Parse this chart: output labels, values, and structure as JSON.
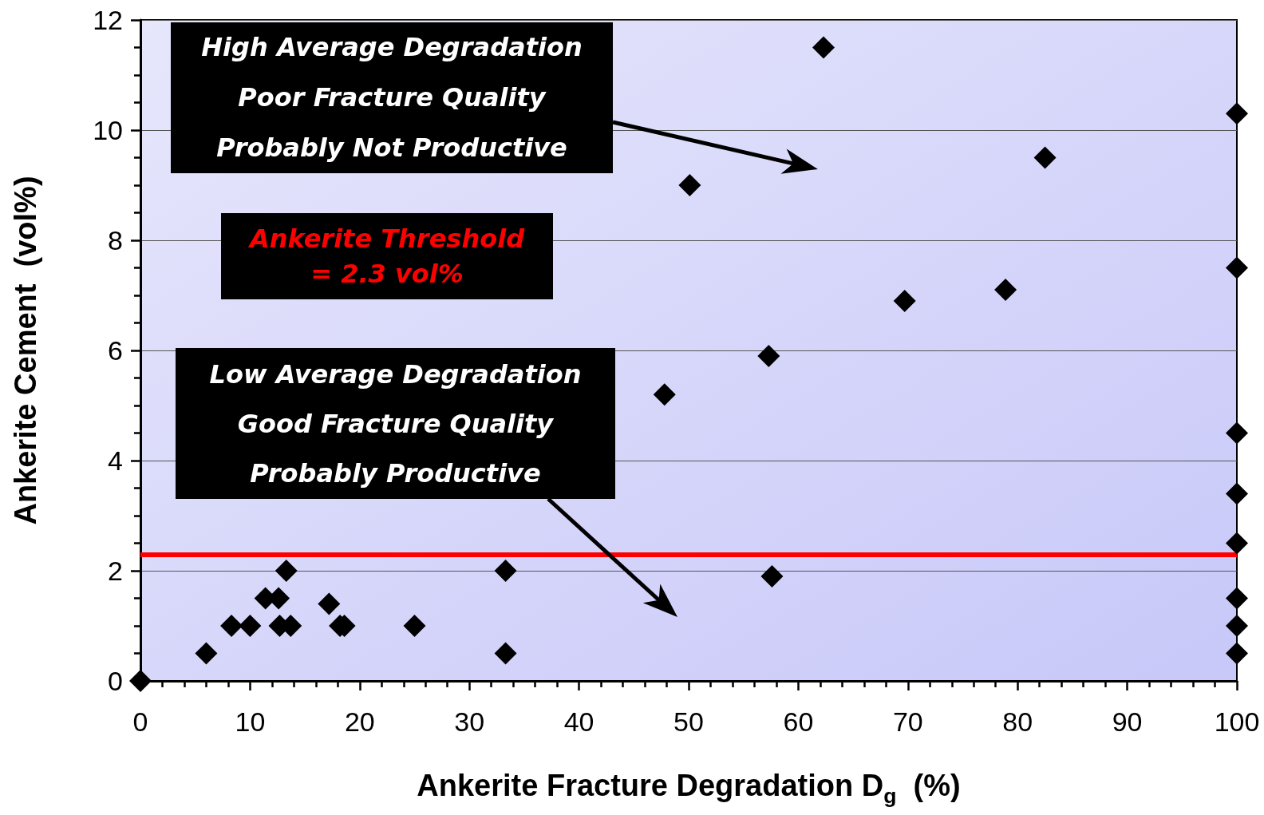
{
  "chart_data": {
    "type": "scatter",
    "xlabel": "Ankerite Fracture Degradation D$_{g}$  (%)",
    "ylabel": "Ankerite Cement  (vol%)",
    "x": [
      0,
      6.0,
      8.3,
      10.0,
      11.4,
      12.6,
      12.7,
      13.3,
      13.7,
      17.2,
      18.2,
      18.6,
      25.0,
      33.3,
      33.3,
      47.8,
      50.1,
      57.3,
      57.6,
      62.3,
      69.7,
      78.9,
      82.5,
      100,
      100,
      100,
      100,
      100,
      100,
      100,
      100
    ],
    "values": [
      0,
      0.5,
      1.0,
      1.0,
      1.5,
      1.5,
      1.0,
      2.0,
      1.0,
      1.4,
      1.0,
      1.0,
      1.0,
      2.0,
      0.5,
      5.2,
      9.0,
      5.9,
      1.9,
      11.5,
      6.9,
      7.1,
      9.5,
      10.3,
      7.5,
      4.5,
      3.4,
      2.5,
      1.5,
      1.0,
      0.5
    ],
    "color": "#000000",
    "marker": "diamond",
    "xlim": [
      0,
      100
    ],
    "xticks": [
      0,
      {
        "value": 2,
        "label": null
      },
      {
        "value": 4,
        "label": null
      },
      {
        "value": 6,
        "label": null
      },
      {
        "value": 8,
        "label": null
      },
      10,
      {
        "value": 12,
        "label": null
      },
      {
        "value": 14,
        "label": null
      },
      {
        "value": 16,
        "label": null
      },
      {
        "value": 18,
        "label": null
      },
      20,
      {
        "value": 22,
        "label": null
      },
      {
        "value": 24,
        "label": null
      },
      {
        "value": 26,
        "label": null
      },
      {
        "value": 28,
        "label": null
      },
      30,
      {
        "value": 32,
        "label": null
      },
      {
        "value": 34,
        "label": null
      },
      {
        "value": 36,
        "label": null
      },
      {
        "value": 38,
        "label": null
      },
      40,
      {
        "value": 42,
        "label": null
      },
      {
        "value": 44,
        "label": null
      },
      {
        "value": 46,
        "label": null
      },
      {
        "value": 48,
        "label": null
      },
      50,
      {
        "value": 52,
        "label": null
      },
      {
        "value": 54,
        "label": null
      },
      {
        "value": 56,
        "label": null
      },
      {
        "value": 58,
        "label": null
      },
      60,
      {
        "value": 62,
        "label": null
      },
      {
        "value": 64,
        "label": null
      },
      {
        "value": 66,
        "label": null
      },
      {
        "value": 68,
        "label": null
      },
      70,
      {
        "value": 72,
        "label": null
      },
      {
        "value": 74,
        "label": null
      },
      {
        "value": 76,
        "label": null
      },
      {
        "value": 78,
        "label": null
      },
      80,
      {
        "value": 82,
        "label": null
      },
      {
        "value": 84,
        "label": null
      },
      {
        "value": 86,
        "label": null
      },
      {
        "value": 88,
        "label": null
      },
      90,
      {
        "value": 92,
        "label": null
      },
      {
        "value": 94,
        "label": null
      },
      {
        "value": 96,
        "label": null
      },
      {
        "value": 98,
        "label": null
      },
      100
    ],
    "ylim": [
      0,
      12
    ],
    "yticks": [
      0,
      {
        "value": 0.5,
        "label": null
      },
      {
        "value": 1,
        "label": null
      },
      {
        "value": 1.5,
        "label": null
      },
      2,
      {
        "value": 2.5,
        "label": null
      },
      {
        "value": 3,
        "label": null
      },
      {
        "value": 3.5,
        "label": null
      },
      4,
      {
        "value": 4.5,
        "label": null
      },
      {
        "value": 5,
        "label": null
      },
      {
        "value": 5.5,
        "label": null
      },
      6,
      {
        "value": 6.5,
        "label": null
      },
      {
        "value": 7,
        "label": null
      },
      {
        "value": 7.5,
        "label": null
      },
      8,
      {
        "value": 8.5,
        "label": null
      },
      {
        "value": 9,
        "label": null
      },
      {
        "value": 9.5,
        "label": null
      },
      10,
      {
        "value": 10.5,
        "label": null
      },
      {
        "value": 11,
        "label": null
      },
      {
        "value": 11.5,
        "label": null
      },
      12
    ],
    "grid": "y",
    "ref_lines": [
      {
        "axis": "y",
        "value": 2.3,
        "label": "Ankerite Threshold\n= 2.3 vol%",
        "color": "#ff0000"
      }
    ],
    "annotations": [
      "High Average Degradation\nPoor Fracture Quality\nProbably Not Productive",
      "Low Average Degradation\nGood Fracture Quality\nProbably Productive"
    ]
  }
}
